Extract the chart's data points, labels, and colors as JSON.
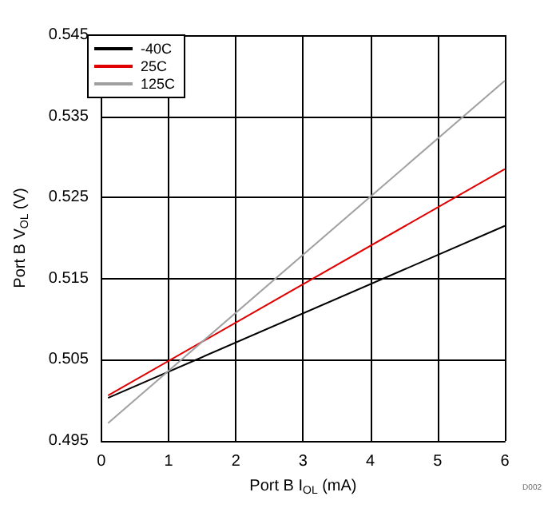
{
  "chart_data": {
    "type": "line",
    "xlabel": "Port B I$_{OL}$ (mA)",
    "ylabel": "Port B V$_{OL}$ (V)",
    "annotations": [
      "D002"
    ],
    "x": [
      0.1,
      6
    ],
    "series": [
      {
        "name": "-40C",
        "color": "#000000",
        "values": [
          0.5003,
          0.5215
        ]
      },
      {
        "name": "25C",
        "color": "#e00000",
        "values": [
          0.5006,
          0.5285
        ]
      },
      {
        "name": "125C",
        "color": "#a0a0a0",
        "values": [
          0.4972,
          0.5394
        ]
      }
    ],
    "xlim": [
      0,
      6
    ],
    "xticks": [
      0,
      1,
      2,
      3,
      4,
      5,
      6
    ],
    "ylim": [
      0.495,
      0.545
    ],
    "yticks": [
      0.495,
      0.505,
      0.515,
      0.525,
      0.535,
      0.545
    ],
    "grid": true,
    "legend": "top left",
    "marker": "none",
    "line_style": "solid"
  }
}
